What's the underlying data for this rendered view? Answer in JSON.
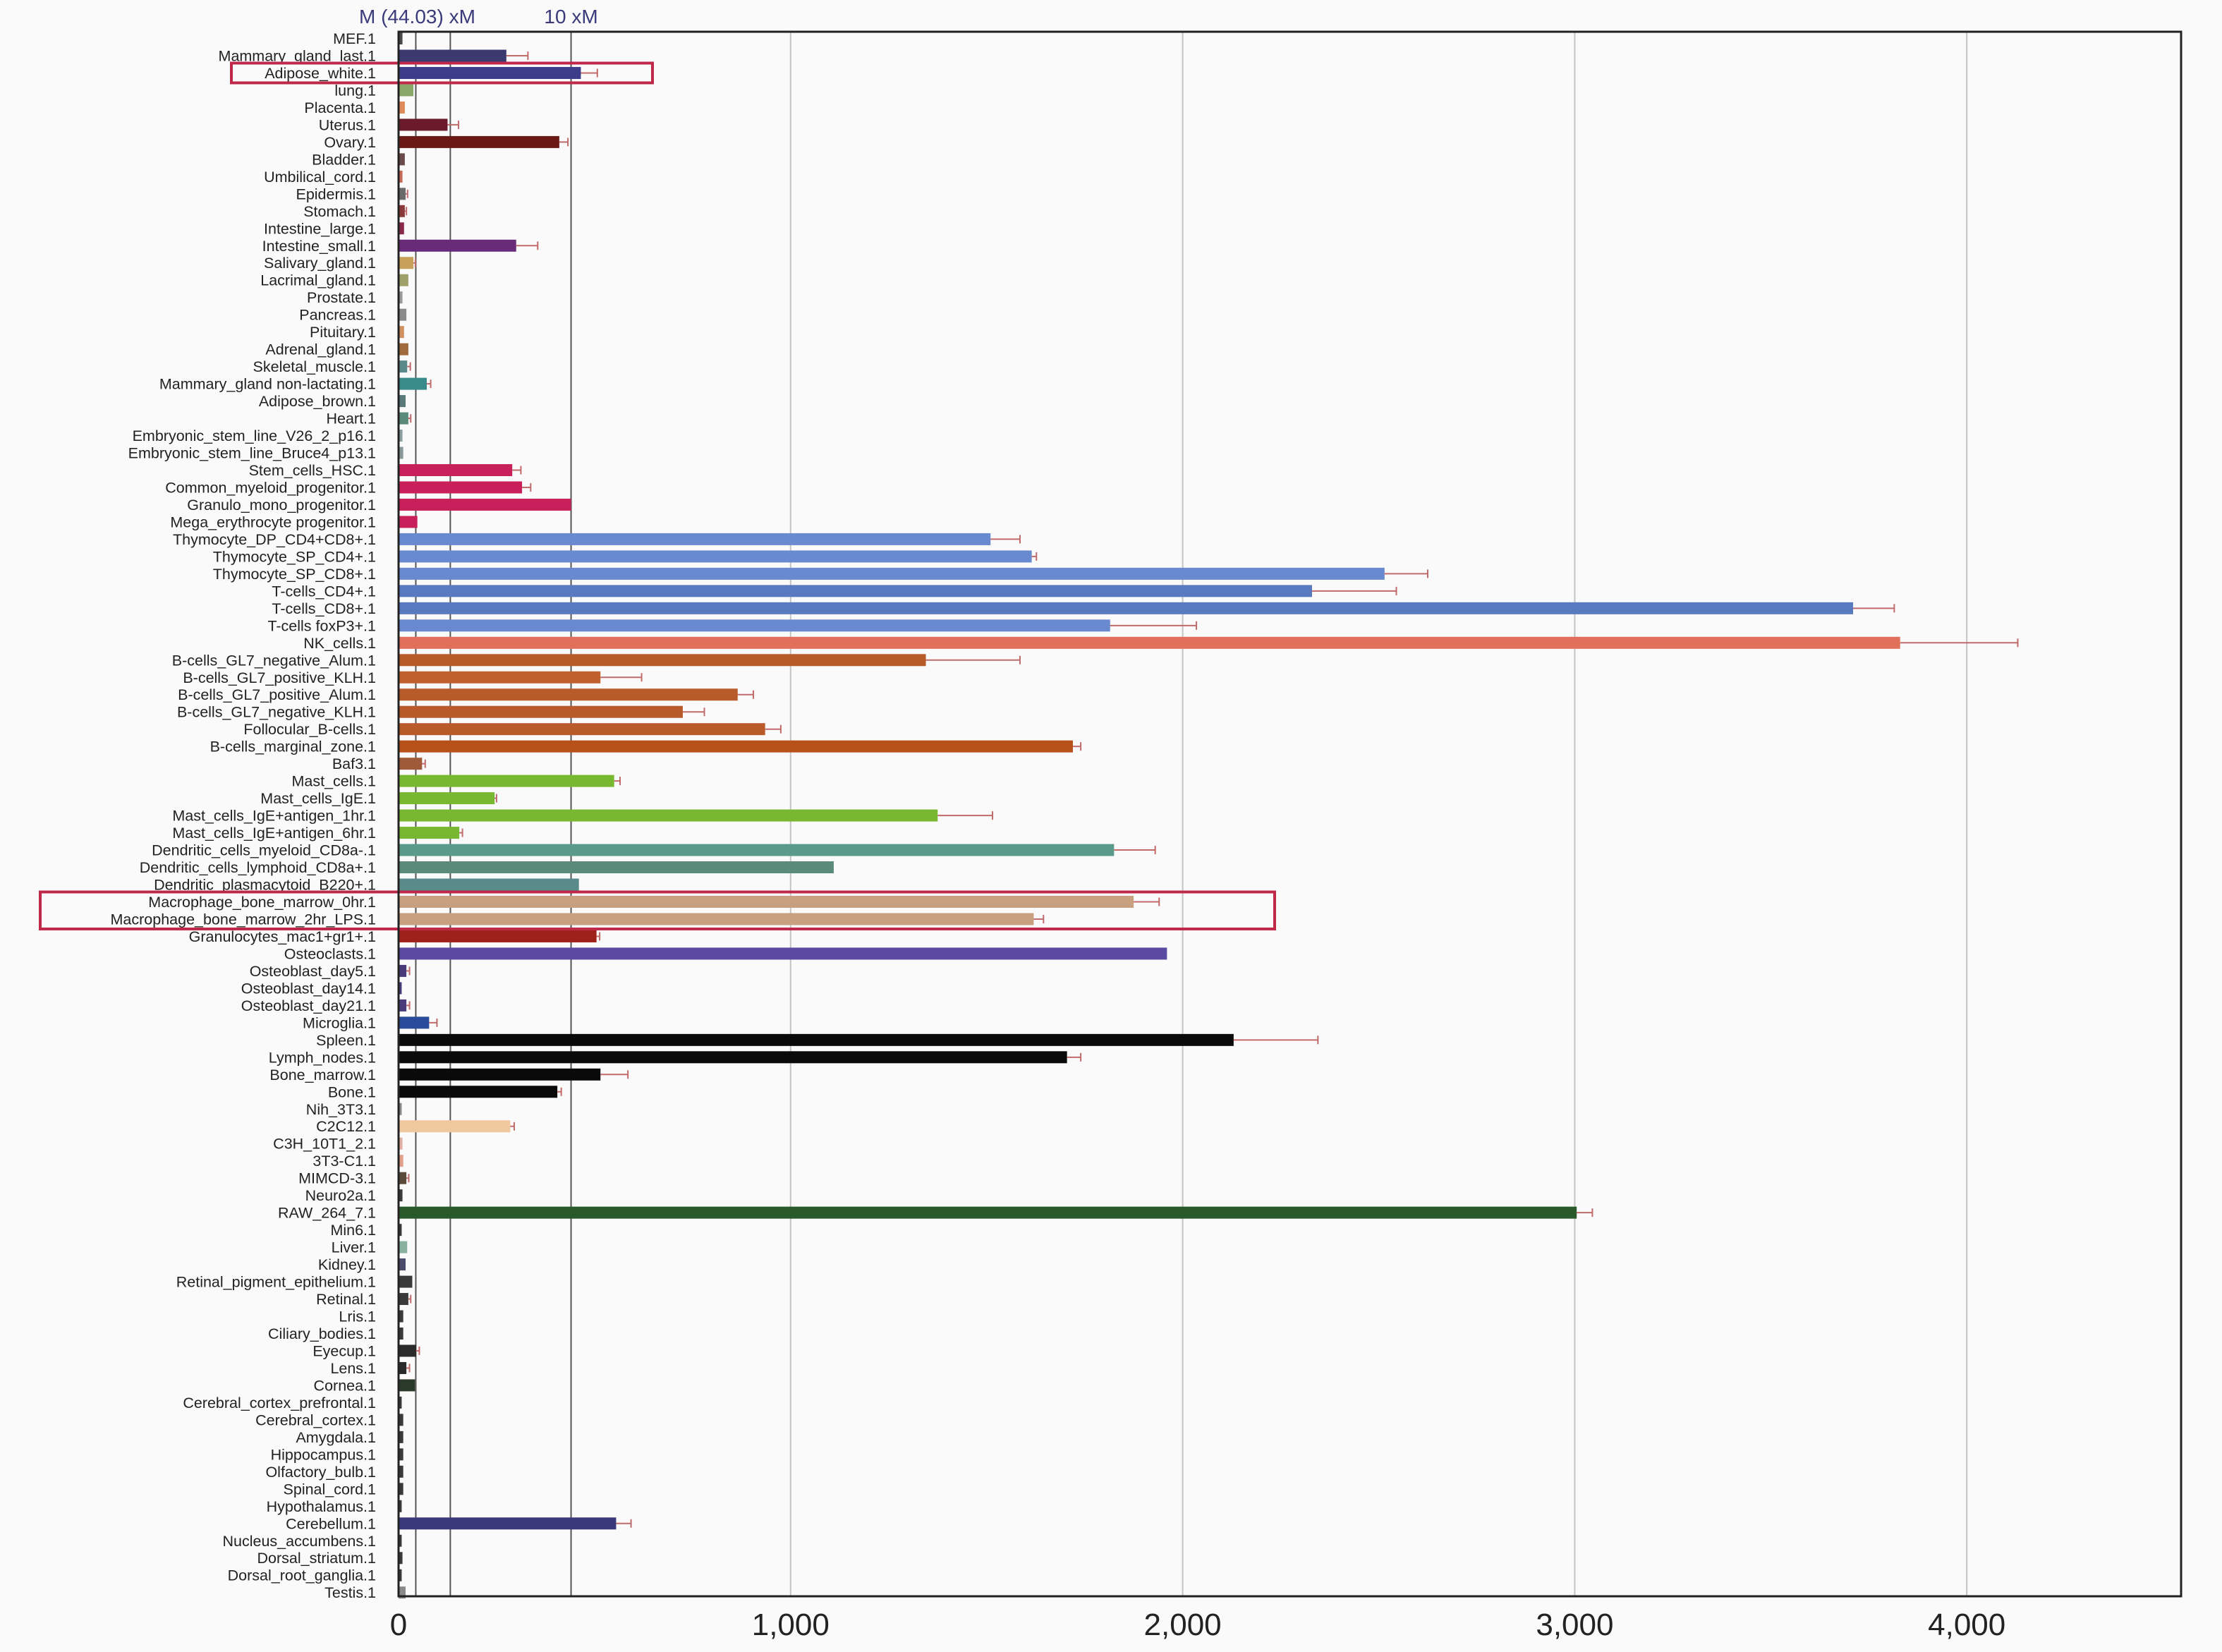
{
  "chart_data": {
    "type": "bar",
    "orientation": "horizontal",
    "xlim": [
      0,
      4550
    ],
    "xticks": [
      0,
      1000,
      2000,
      3000,
      4000
    ],
    "xtick_labels": [
      "0",
      "1,000",
      "2,000",
      "3,000",
      "4,000"
    ],
    "grid": "vertical",
    "reference_lines": [
      {
        "label": "M (44.03) xM",
        "value": 44
      },
      {
        "label": "",
        "value": 132
      },
      {
        "label": "10 xM",
        "value": 440
      }
    ],
    "highlight_boxes": [
      {
        "categories": [
          "Adipose_white.1"
        ],
        "color": "#c0284a"
      },
      {
        "categories": [
          "Macrophage_bone_marrow_0hr.1",
          "Macrophage_bone_marrow_2hr_LPS.1"
        ],
        "color": "#c0284a"
      }
    ],
    "bars": [
      {
        "label": "MEF.1",
        "value": 10,
        "err": 0,
        "color": "#4a4a4a"
      },
      {
        "label": "Mammary_gland_last.1",
        "value": 275,
        "err": 55,
        "color": "#3a3a6e"
      },
      {
        "label": "Adipose_white.1",
        "value": 465,
        "err": 42,
        "color": "#3c3c8a"
      },
      {
        "label": "lung.1",
        "value": 38,
        "err": 0,
        "color": "#8aa86a"
      },
      {
        "label": "Placenta.1",
        "value": 16,
        "err": 0,
        "color": "#e08a5a"
      },
      {
        "label": "Uterus.1",
        "value": 125,
        "err": 28,
        "color": "#6a1a2a"
      },
      {
        "label": "Ovary.1",
        "value": 410,
        "err": 22,
        "color": "#6a1a12"
      },
      {
        "label": "Bladder.1",
        "value": 16,
        "err": 0,
        "color": "#6a4a4a"
      },
      {
        "label": "Umbilical_cord.1",
        "value": 10,
        "err": 0,
        "color": "#c86a5a"
      },
      {
        "label": "Epidermis.1",
        "value": 18,
        "err": 5,
        "color": "#6a6a6a"
      },
      {
        "label": "Stomach.1",
        "value": 16,
        "err": 4,
        "color": "#8a3a3a"
      },
      {
        "label": "Intestine_large.1",
        "value": 14,
        "err": 0,
        "color": "#8a2a4a"
      },
      {
        "label": "Intestine_small.1",
        "value": 300,
        "err": 55,
        "color": "#6a2a7a"
      },
      {
        "label": "Salivary_gland.1",
        "value": 38,
        "err": 5,
        "color": "#c8a05a"
      },
      {
        "label": "Lacrimal_gland.1",
        "value": 25,
        "err": 0,
        "color": "#a0a06a"
      },
      {
        "label": "Prostate.1",
        "value": 10,
        "err": 0,
        "color": "#9a9a9a"
      },
      {
        "label": "Pancreas.1",
        "value": 20,
        "err": 0,
        "color": "#8a8a8a"
      },
      {
        "label": "Pituitary.1",
        "value": 14,
        "err": 0,
        "color": "#d09060"
      },
      {
        "label": "Adrenal_gland.1",
        "value": 25,
        "err": 0,
        "color": "#a06a3a"
      },
      {
        "label": "Skeletal_muscle.1",
        "value": 22,
        "err": 8,
        "color": "#5a8a8a"
      },
      {
        "label": "Mammary_gland non-lactating.1",
        "value": 72,
        "err": 10,
        "color": "#3a8a8a"
      },
      {
        "label": "Adipose_brown.1",
        "value": 18,
        "err": 0,
        "color": "#5a7a7a"
      },
      {
        "label": "Heart.1",
        "value": 25,
        "err": 6,
        "color": "#5a8a7a"
      },
      {
        "label": "Embryonic_stem_line_V26_2_p16.1",
        "value": 10,
        "err": 0,
        "color": "#8aa0a0"
      },
      {
        "label": "Embryonic_stem_line_Bruce4_p13.1",
        "value": 12,
        "err": 0,
        "color": "#8a9a9a"
      },
      {
        "label": "Stem_cells_HSC.1",
        "value": 290,
        "err": 22,
        "color": "#c8205a"
      },
      {
        "label": "Common_myeloid_progenitor.1",
        "value": 315,
        "err": 22,
        "color": "#c8205a"
      },
      {
        "label": "Granulo_mono_progenitor.1",
        "value": 440,
        "err": 0,
        "color": "#c8205a"
      },
      {
        "label": "Mega_erythrocyte progenitor.1",
        "value": 48,
        "err": 0,
        "color": "#c8205a"
      },
      {
        "label": "Thymocyte_DP_CD4+CD8+.1",
        "value": 1510,
        "err": 75,
        "color": "#6a8ad0"
      },
      {
        "label": "Thymocyte_SP_CD4+.1",
        "value": 1615,
        "err": 12,
        "color": "#6a8ad0"
      },
      {
        "label": "Thymocyte_SP_CD8+.1",
        "value": 2515,
        "err": 110,
        "color": "#6a8ad0"
      },
      {
        "label": "T-cells_CD4+.1",
        "value": 2330,
        "err": 215,
        "color": "#5a7ac0"
      },
      {
        "label": "T-cells_CD8+.1",
        "value": 3710,
        "err": 105,
        "color": "#5a7ac0"
      },
      {
        "label": "T-cells foxP3+.1",
        "value": 1815,
        "err": 220,
        "color": "#6a8ad0"
      },
      {
        "label": "NK_cells.1",
        "value": 3830,
        "err": 300,
        "color": "#e0705a"
      },
      {
        "label": "B-cells_GL7_negative_Alum.1",
        "value": 1345,
        "err": 240,
        "color": "#b85a2a"
      },
      {
        "label": "B-cells_GL7_positive_KLH.1",
        "value": 515,
        "err": 105,
        "color": "#c0602a"
      },
      {
        "label": "B-cells_GL7_positive_Alum.1",
        "value": 865,
        "err": 40,
        "color": "#b85a2a"
      },
      {
        "label": "B-cells_GL7_negative_KLH.1",
        "value": 725,
        "err": 55,
        "color": "#b85a2a"
      },
      {
        "label": "Follocular_B-cells.1",
        "value": 935,
        "err": 40,
        "color": "#b85a2a"
      },
      {
        "label": "B-cells_marginal_zone.1",
        "value": 1720,
        "err": 20,
        "color": "#b8501a"
      },
      {
        "label": "Baf3.1",
        "value": 60,
        "err": 8,
        "color": "#a05a3a"
      },
      {
        "label": "Mast_cells.1",
        "value": 550,
        "err": 15,
        "color": "#78b830"
      },
      {
        "label": "Mast_cells_IgE.1",
        "value": 245,
        "err": 5,
        "color": "#78b830"
      },
      {
        "label": "Mast_cells_IgE+antigen_1hr.1",
        "value": 1375,
        "err": 140,
        "color": "#78b830"
      },
      {
        "label": "Mast_cells_IgE+antigen_6hr.1",
        "value": 155,
        "err": 8,
        "color": "#78b830"
      },
      {
        "label": "Dendritic_cells_myeloid_CD8a-.1",
        "value": 1825,
        "err": 105,
        "color": "#5a9a8a"
      },
      {
        "label": "Dendritic_cells_lymphoid_CD8a+.1",
        "value": 1110,
        "err": 0,
        "color": "#5a8a7a"
      },
      {
        "label": "Dendritic_plasmacytoid_B220+.1",
        "value": 460,
        "err": 0,
        "color": "#5a8a8a"
      },
      {
        "label": "Macrophage_bone_marrow_0hr.1",
        "value": 1875,
        "err": 65,
        "color": "#c8a080"
      },
      {
        "label": "Macrophage_bone_marrow_2hr_LPS.1",
        "value": 1620,
        "err": 25,
        "color": "#c8a080"
      },
      {
        "label": "Granulocytes_mac1+gr1+.1",
        "value": 505,
        "err": 8,
        "color": "#a0201a"
      },
      {
        "label": "Osteoclasts.1",
        "value": 1960,
        "err": 0,
        "color": "#5a4aa0"
      },
      {
        "label": "Osteoblast_day5.1",
        "value": 20,
        "err": 8,
        "color": "#4a3a7a"
      },
      {
        "label": "Osteoblast_day14.1",
        "value": 8,
        "err": 0,
        "color": "#4a3a7a"
      },
      {
        "label": "Osteoblast_day21.1",
        "value": 20,
        "err": 8,
        "color": "#4a3a7a"
      },
      {
        "label": "Microglia.1",
        "value": 78,
        "err": 20,
        "color": "#2a4a9a"
      },
      {
        "label": "Spleen.1",
        "value": 2130,
        "err": 215,
        "color": "#0a0a0a"
      },
      {
        "label": "Lymph_nodes.1",
        "value": 1705,
        "err": 35,
        "color": "#0a0a0a"
      },
      {
        "label": "Bone_marrow.1",
        "value": 515,
        "err": 70,
        "color": "#0a0a0a"
      },
      {
        "label": "Bone.1",
        "value": 405,
        "err": 10,
        "color": "#0a0a0a"
      },
      {
        "label": "Nih_3T3.1",
        "value": 8,
        "err": 0,
        "color": "#8a8a8a"
      },
      {
        "label": "C2C12.1",
        "value": 285,
        "err": 10,
        "color": "#f0c8a0"
      },
      {
        "label": "C3H_10T1_2.1",
        "value": 10,
        "err": 0,
        "color": "#e0b0a0"
      },
      {
        "label": "3T3-C1.1",
        "value": 12,
        "err": 0,
        "color": "#e0a08a"
      },
      {
        "label": "MIMCD-3.1",
        "value": 20,
        "err": 6,
        "color": "#5a4a3a"
      },
      {
        "label": "Neuro2a.1",
        "value": 10,
        "err": 0,
        "color": "#3a3a3a"
      },
      {
        "label": "RAW_264_7.1",
        "value": 3005,
        "err": 40,
        "color": "#2a5a2a"
      },
      {
        "label": "Min6.1",
        "value": 8,
        "err": 0,
        "color": "#3a3a3a"
      },
      {
        "label": "Liver.1",
        "value": 22,
        "err": 0,
        "color": "#8ab0a0"
      },
      {
        "label": "Kidney.1",
        "value": 18,
        "err": 0,
        "color": "#4a4a6a"
      },
      {
        "label": "Retinal_pigment_epithelium.1",
        "value": 35,
        "err": 0,
        "color": "#3a3a3a"
      },
      {
        "label": "Retinal.1",
        "value": 25,
        "err": 6,
        "color": "#3a3a3a"
      },
      {
        "label": "Lris.1",
        "value": 12,
        "err": 0,
        "color": "#3a3a3a"
      },
      {
        "label": "Ciliary_bodies.1",
        "value": 12,
        "err": 0,
        "color": "#3a3a3a"
      },
      {
        "label": "Eyecup.1",
        "value": 45,
        "err": 8,
        "color": "#2a2a2a"
      },
      {
        "label": "Lens.1",
        "value": 20,
        "err": 8,
        "color": "#2a2a2a"
      },
      {
        "label": "Cornea.1",
        "value": 42,
        "err": 0,
        "color": "#2a3a2a"
      },
      {
        "label": "Cerebral_cortex_prefrontal.1",
        "value": 8,
        "err": 0,
        "color": "#3a3a3a"
      },
      {
        "label": "Cerebral_cortex.1",
        "value": 12,
        "err": 0,
        "color": "#3a3a3a"
      },
      {
        "label": "Amygdala.1",
        "value": 12,
        "err": 0,
        "color": "#3a3a3a"
      },
      {
        "label": "Hippocampus.1",
        "value": 12,
        "err": 0,
        "color": "#3a3a3a"
      },
      {
        "label": "Olfactory_bulb.1",
        "value": 12,
        "err": 0,
        "color": "#3a3a3a"
      },
      {
        "label": "Spinal_cord.1",
        "value": 12,
        "err": 0,
        "color": "#3a3a3a"
      },
      {
        "label": "Hypothalamus.1",
        "value": 8,
        "err": 0,
        "color": "#3a3a3a"
      },
      {
        "label": "Cerebellum.1",
        "value": 555,
        "err": 38,
        "color": "#3a3a7a"
      },
      {
        "label": "Nucleus_accumbens.1",
        "value": 8,
        "err": 0,
        "color": "#3a3a3a"
      },
      {
        "label": "Dorsal_striatum.1",
        "value": 10,
        "err": 0,
        "color": "#3a3a3a"
      },
      {
        "label": "Dorsal_root_ganglia.1",
        "value": 8,
        "err": 0,
        "color": "#3a3a3a"
      },
      {
        "label": "Testis.1",
        "value": 18,
        "err": 0,
        "color": "#8a8a8a"
      }
    ]
  }
}
